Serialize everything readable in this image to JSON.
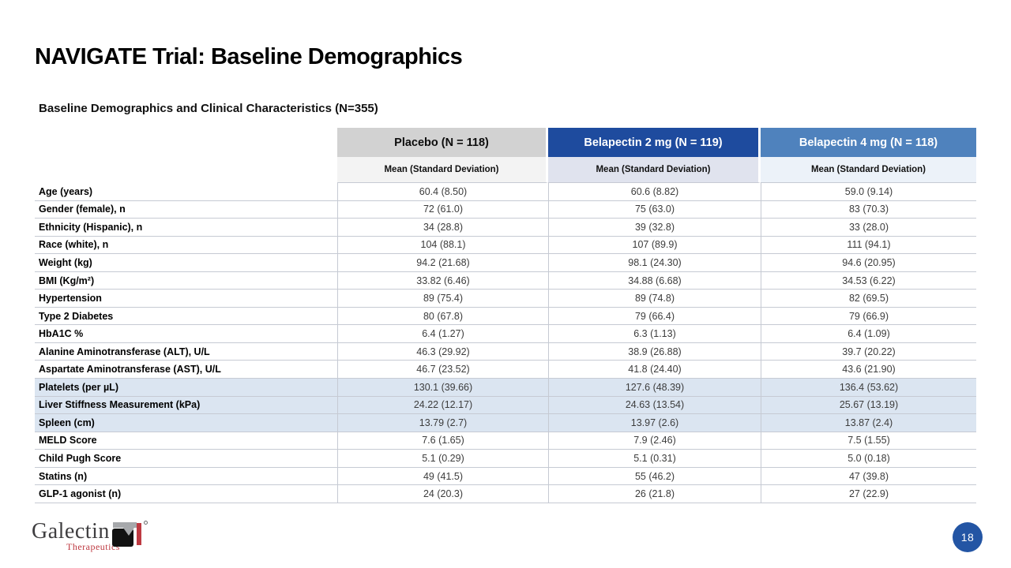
{
  "slide": {
    "title": "NAVIGATE Trial: Baseline Demographics",
    "subtitle": "Baseline Demographics and Clinical Characteristics (N=355)",
    "page_number": "18"
  },
  "colors": {
    "placebo_header_bg": "#d2d2d2",
    "placebo_header_fg": "#0d0d0d",
    "belapectin2_header_bg": "#1e4b9e",
    "belapectin2_header_fg": "#ffffff",
    "belapectin4_header_bg": "#4f82bd",
    "belapectin4_header_fg": "#ffffff",
    "placebo_sub_bg": "#f3f3f3",
    "belapectin2_sub_bg": "#e0e3ee",
    "belapectin4_sub_bg": "#ecf2f9",
    "highlight_row_bg": "#dbe5f1",
    "page_badge_bg": "#2355a4",
    "logo_red": "#be3a42"
  },
  "table": {
    "columns": [
      {
        "label": "Placebo (N = 118)",
        "sub": "Mean (Standard Deviation)"
      },
      {
        "label": "Belapectin 2 mg (N = 119)",
        "sub": "Mean (Standard Deviation)"
      },
      {
        "label": "Belapectin 4 mg (N = 118)",
        "sub": "Mean (Standard Deviation)"
      }
    ],
    "rows": [
      {
        "label": "Age (years)",
        "values": [
          "60.4 (8.50)",
          "60.6 (8.82)",
          "59.0 (9.14)"
        ],
        "highlight": false
      },
      {
        "label": "Gender (female), n",
        "values": [
          "72 (61.0)",
          "75 (63.0)",
          "83 (70.3)"
        ],
        "highlight": false
      },
      {
        "label": "Ethnicity (Hispanic), n",
        "values": [
          "34 (28.8)",
          "39 (32.8)",
          "33 (28.0)"
        ],
        "highlight": false
      },
      {
        "label": "Race (white), n",
        "values": [
          "104 (88.1)",
          "107 (89.9)",
          "111 (94.1)"
        ],
        "highlight": false
      },
      {
        "label": "Weight (kg)",
        "values": [
          "94.2 (21.68)",
          "98.1 (24.30)",
          "94.6 (20.95)"
        ],
        "highlight": false
      },
      {
        "label": "BMI (Kg/m²)",
        "values": [
          "33.82 (6.46)",
          "34.88 (6.68)",
          "34.53 (6.22)"
        ],
        "highlight": false
      },
      {
        "label": "Hypertension",
        "values": [
          "89 (75.4)",
          "89 (74.8)",
          "82 (69.5)"
        ],
        "highlight": false
      },
      {
        "label": "Type 2 Diabetes",
        "values": [
          "80 (67.8)",
          "79 (66.4)",
          "79 (66.9)"
        ],
        "highlight": false
      },
      {
        "label": "HbA1C %",
        "values": [
          "6.4 (1.27)",
          "6.3 (1.13)",
          "6.4 (1.09)"
        ],
        "highlight": false
      },
      {
        "label": "Alanine Aminotransferase (ALT), U/L",
        "values": [
          "46.3 (29.92)",
          "38.9 (26.88)",
          "39.7 (20.22)"
        ],
        "highlight": false
      },
      {
        "label": "Aspartate Aminotransferase (AST), U/L",
        "values": [
          "46.7 (23.52)",
          "41.8 (24.40)",
          "43.6 (21.90)"
        ],
        "highlight": false
      },
      {
        "label": "Platelets (per µL)",
        "values": [
          "130.1 (39.66)",
          "127.6 (48.39)",
          "136.4 (53.62)"
        ],
        "highlight": true
      },
      {
        "label": "Liver Stiffness Measurement (kPa)",
        "values": [
          "24.22 (12.17)",
          "24.63 (13.54)",
          "25.67 (13.19)"
        ],
        "highlight": true
      },
      {
        "label": "Spleen (cm)",
        "values": [
          "13.79 (2.7)",
          "13.97 (2.6)",
          "13.87 (2.4)"
        ],
        "highlight": true
      },
      {
        "label": "MELD Score",
        "values": [
          "7.6 (1.65)",
          "7.9 (2.46)",
          "7.5 (1.55)"
        ],
        "highlight": false
      },
      {
        "label": "Child Pugh Score",
        "values": [
          "5.1 (0.29)",
          "5.1 (0.31)",
          "5.0 (0.18)"
        ],
        "highlight": false
      },
      {
        "label": "Statins (n)",
        "values": [
          "49 (41.5)",
          "55 (46.2)",
          "47 (39.8)"
        ],
        "highlight": false
      },
      {
        "label": "GLP-1 agonist (n)",
        "values": [
          "24 (20.3)",
          "26 (21.8)",
          "27 (22.9)"
        ],
        "highlight": false
      }
    ]
  },
  "footer": {
    "logo_text": "Galectin",
    "logo_subtext": "Therapeutics",
    "logo_mark": "gt-monogram-icon"
  }
}
